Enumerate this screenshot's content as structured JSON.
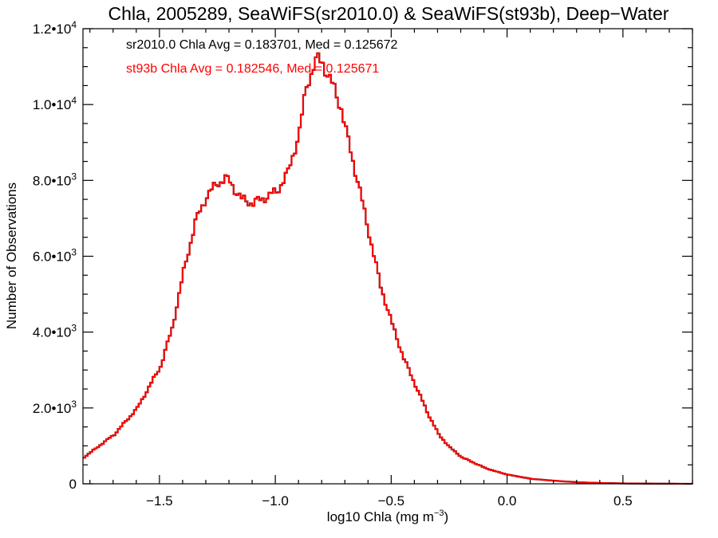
{
  "chart_data": {
    "type": "histogram",
    "title": "Chla, 2005289, SeaWiFS(sr2010.0) & SeaWiFS(st93b), Deep−Water",
    "xlabel_main": "log10 Chla (mg m",
    "xlabel_exp": "−3",
    "xlabel_close": ")",
    "ylabel": "Number of Observations",
    "xlim": [
      -1.83,
      0.8
    ],
    "ylim": [
      0,
      12000
    ],
    "x_ticks": [
      {
        "value": -1.5,
        "label": "−1.5"
      },
      {
        "value": -1.0,
        "label": "−1.0"
      },
      {
        "value": -0.5,
        "label": "−0.5"
      },
      {
        "value": 0.0,
        "label": "0.0"
      },
      {
        "value": 0.5,
        "label": "0.5"
      }
    ],
    "y_ticks": [
      {
        "value": 0,
        "mantissa": "0",
        "exp": ""
      },
      {
        "value": 2000,
        "mantissa": "2.0•10",
        "exp": "3"
      },
      {
        "value": 4000,
        "mantissa": "4.0•10",
        "exp": "3"
      },
      {
        "value": 6000,
        "mantissa": "6.0•10",
        "exp": "3"
      },
      {
        "value": 8000,
        "mantissa": "8.0•10",
        "exp": "3"
      },
      {
        "value": 10000,
        "mantissa": "1.0•10",
        "exp": "4"
      },
      {
        "value": 12000,
        "mantissa": "1.2•10",
        "exp": "4"
      }
    ],
    "annotations": [
      {
        "text": "sr2010.0 Chla Avg = 0.183701, Med = 0.125672",
        "color": "#000000"
      },
      {
        "text": "st93b Chla Avg = 0.182546, Med = 0.125671",
        "color": "#ff0000"
      }
    ],
    "series": [
      {
        "name": "sr2010.0",
        "color": "#000000",
        "x": [
          -1.83,
          -1.7,
          -1.6,
          -1.5,
          -1.45,
          -1.4,
          -1.35,
          -1.3,
          -1.25,
          -1.22,
          -1.2,
          -1.15,
          -1.1,
          -1.05,
          -1.0,
          -0.95,
          -0.9,
          -0.87,
          -0.84,
          -0.82,
          -0.8,
          -0.78,
          -0.75,
          -0.72,
          -0.7,
          -0.65,
          -0.6,
          -0.55,
          -0.5,
          -0.45,
          -0.4,
          -0.35,
          -0.3,
          -0.25,
          -0.2,
          -0.15,
          -0.1,
          -0.05,
          0.0,
          0.1,
          0.2,
          0.3,
          0.4,
          0.5,
          0.6,
          0.7,
          0.8
        ],
        "y": [
          700,
          1300,
          2000,
          3100,
          4100,
          5600,
          6900,
          7600,
          7950,
          8050,
          7950,
          7500,
          7400,
          7550,
          7700,
          8200,
          9300,
          10500,
          11000,
          11200,
          11100,
          10800,
          10400,
          9900,
          9300,
          8000,
          6600,
          5200,
          4200,
          3300,
          2600,
          1900,
          1300,
          950,
          700,
          560,
          420,
          320,
          240,
          130,
          80,
          40,
          20,
          10,
          5,
          2,
          0
        ]
      },
      {
        "name": "st93b",
        "color": "#ff0000",
        "x": [
          -1.83,
          -1.7,
          -1.6,
          -1.5,
          -1.45,
          -1.4,
          -1.35,
          -1.3,
          -1.25,
          -1.22,
          -1.2,
          -1.15,
          -1.1,
          -1.05,
          -1.0,
          -0.95,
          -0.9,
          -0.87,
          -0.84,
          -0.82,
          -0.8,
          -0.78,
          -0.75,
          -0.72,
          -0.7,
          -0.65,
          -0.6,
          -0.55,
          -0.5,
          -0.45,
          -0.4,
          -0.35,
          -0.3,
          -0.25,
          -0.2,
          -0.15,
          -0.1,
          -0.05,
          0.0,
          0.1,
          0.2,
          0.3,
          0.4,
          0.5,
          0.6,
          0.7,
          0.8
        ],
        "y": [
          700,
          1300,
          2000,
          3100,
          4100,
          5600,
          6900,
          7600,
          7950,
          8050,
          7950,
          7500,
          7400,
          7550,
          7700,
          8200,
          9300,
          10500,
          11000,
          11200,
          11100,
          10800,
          10400,
          9900,
          9300,
          8000,
          6600,
          5200,
          4200,
          3300,
          2600,
          1900,
          1300,
          950,
          700,
          560,
          420,
          320,
          240,
          130,
          80,
          40,
          20,
          10,
          5,
          2,
          0
        ]
      }
    ]
  }
}
